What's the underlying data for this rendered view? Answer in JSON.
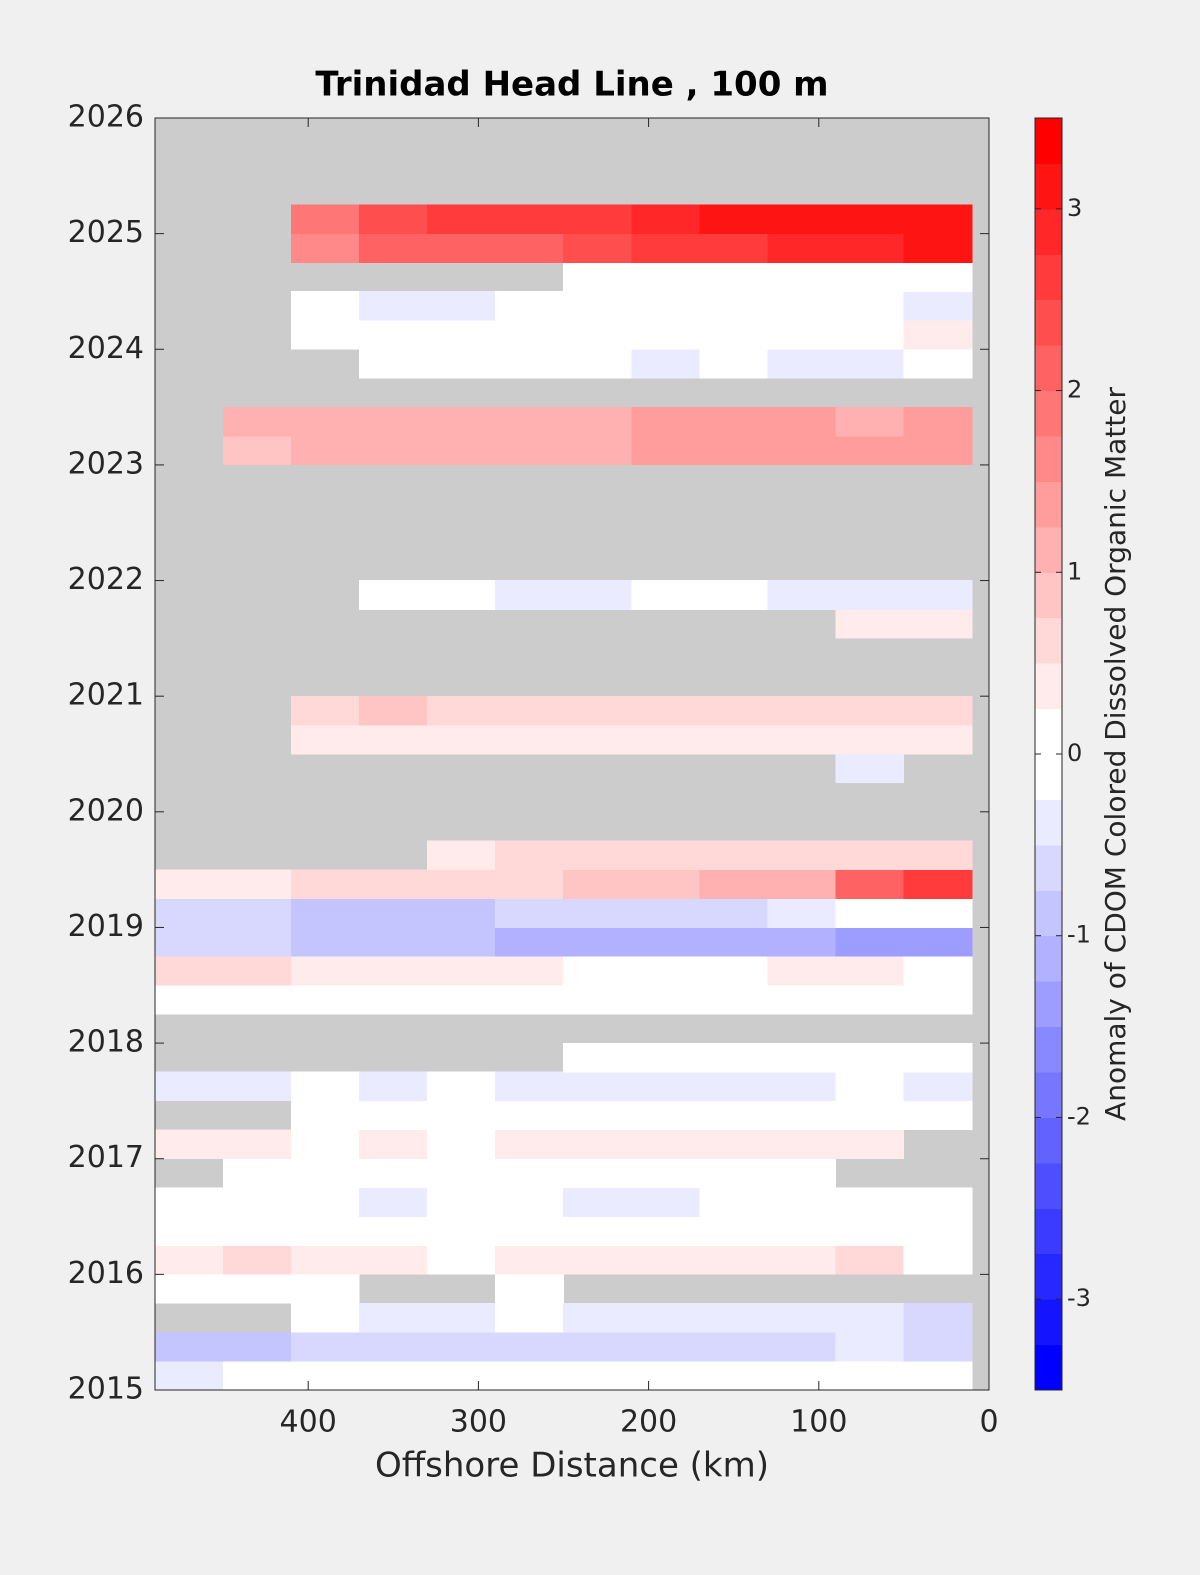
{
  "chart_data": {
    "type": "contour",
    "title": "Trinidad Head Line , 100 m",
    "xlabel": "Offshore Distance (km)",
    "xlim": [
      490,
      0
    ],
    "xticks": [
      0,
      100,
      200,
      300,
      400
    ],
    "ylim": [
      2015,
      2026
    ],
    "yticks": [
      2015,
      2016,
      2017,
      2018,
      2019,
      2020,
      2021,
      2022,
      2023,
      2024,
      2025,
      2026
    ],
    "nan_color": "#cccccc",
    "color_low": "#0000ff",
    "color_zero": "#ffffff",
    "color_high": "#ff0000",
    "colorbar": {
      "label": "Anomaly of CDOM Colored Dissolved Organic Matter",
      "lim": [
        -3.5,
        3.5
      ],
      "ticks": [
        -3,
        -2,
        -1,
        0,
        1,
        2,
        3
      ],
      "step": 0.25
    },
    "x": [
      470,
      430,
      390,
      350,
      310,
      270,
      230,
      190,
      150,
      110,
      70,
      30
    ],
    "y": [
      2015.125,
      2015.375,
      2015.625,
      2015.875,
      2016.125,
      2016.375,
      2016.625,
      2016.875,
      2017.125,
      2017.375,
      2017.625,
      2017.875,
      2018.125,
      2018.375,
      2018.625,
      2018.875,
      2019.125,
      2019.375,
      2019.625,
      2019.875,
      2020.125,
      2020.375,
      2020.625,
      2020.875,
      2021.125,
      2021.375,
      2021.625,
      2021.875,
      2022.125,
      2022.375,
      2022.625,
      2022.875,
      2023.125,
      2023.375,
      2023.625,
      2023.875,
      2024.125,
      2024.375,
      2024.625,
      2024.875,
      2025.125
    ],
    "z": [
      [
        -0.3,
        -0.2,
        -0.1,
        0,
        0,
        0,
        0,
        0,
        0,
        0,
        0,
        0
      ],
      [
        -0.8,
        -0.8,
        -0.7,
        -0.7,
        -0.6,
        -0.6,
        -0.6,
        -0.5,
        -0.5,
        -0.5,
        -0.4,
        -0.5
      ],
      [
        null,
        null,
        -0.2,
        -0.3,
        -0.3,
        -0.2,
        -0.3,
        -0.3,
        -0.4,
        -0.4,
        -0.4,
        -0.5
      ],
      [
        0.1,
        0.1,
        0.1,
        null,
        null,
        0,
        null,
        null,
        null,
        null,
        null,
        null
      ],
      [
        0.4,
        0.5,
        0.4,
        0.3,
        0.2,
        0.3,
        0.3,
        0.3,
        0.3,
        0.4,
        0.5,
        0
      ],
      [
        0,
        0,
        -0.1,
        -0.2,
        -0.1,
        0,
        -0.1,
        0,
        0,
        0,
        0,
        -0.2
      ],
      [
        0,
        0,
        -0.2,
        -0.3,
        -0.1,
        0,
        -0.3,
        -0.3,
        0,
        0,
        0,
        0
      ],
      [
        null,
        0.1,
        0.2,
        0.2,
        0.2,
        0.1,
        0.2,
        0.1,
        0,
        0.1,
        null,
        null
      ],
      [
        0.3,
        0.3,
        0.2,
        0.3,
        0.2,
        0.3,
        0.4,
        0.3,
        0.3,
        0.4,
        0.3,
        null
      ],
      [
        null,
        null,
        0,
        0,
        0,
        0,
        0,
        0,
        0,
        0,
        0,
        0
      ],
      [
        -0.3,
        -0.3,
        -0.2,
        -0.3,
        -0.2,
        -0.3,
        -0.3,
        -0.3,
        -0.3,
        -0.3,
        -0.2,
        -0.3
      ],
      [
        null,
        null,
        null,
        null,
        null,
        null,
        -0.1,
        -0.1,
        -0.2,
        -0.2,
        -0.2,
        -0.1
      ],
      [
        null,
        null,
        null,
        null,
        null,
        null,
        null,
        null,
        null,
        null,
        null,
        null
      ],
      [
        0,
        0,
        0,
        0.1,
        0.1,
        0,
        0,
        0,
        0.1,
        0.1,
        0.2,
        0.2
      ],
      [
        0.6,
        0.5,
        0.4,
        0.3,
        0.3,
        0.3,
        0.2,
        0.2,
        0.2,
        0.3,
        0.3,
        0.2
      ],
      [
        -0.6,
        -0.7,
        -0.8,
        -0.9,
        -0.9,
        -1.0,
        -1.1,
        -1.0,
        -1.0,
        -1.2,
        -1.4,
        -1.4
      ],
      [
        -0.6,
        -0.6,
        -0.8,
        -0.8,
        -0.9,
        -0.7,
        -0.6,
        -0.5,
        -0.5,
        -0.3,
        0,
        -0.2
      ],
      [
        0.4,
        0.4,
        0.5,
        0.5,
        0.6,
        0.7,
        0.8,
        0.9,
        1.0,
        1.2,
        2.2,
        2.6
      ],
      [
        null,
        null,
        null,
        null,
        0.4,
        0.5,
        0.5,
        0.5,
        0.6,
        0.6,
        0.5,
        0.5
      ],
      [
        null,
        null,
        null,
        null,
        null,
        null,
        null,
        null,
        null,
        null,
        null,
        null
      ],
      [
        null,
        null,
        null,
        null,
        null,
        null,
        null,
        null,
        null,
        null,
        null,
        null
      ],
      [
        null,
        null,
        null,
        null,
        null,
        null,
        null,
        null,
        null,
        null,
        -0.4,
        null
      ],
      [
        null,
        null,
        0.3,
        0.3,
        0.4,
        0.4,
        0.3,
        0.4,
        0.3,
        0.3,
        0.3,
        0.4
      ],
      [
        null,
        null,
        0.7,
        0.8,
        0.7,
        0.6,
        0.6,
        0.6,
        0.6,
        0.7,
        0.7,
        0.6
      ],
      [
        null,
        null,
        null,
        null,
        null,
        null,
        null,
        null,
        null,
        null,
        null,
        null
      ],
      [
        null,
        null,
        null,
        null,
        null,
        null,
        null,
        null,
        null,
        null,
        null,
        null
      ],
      [
        null,
        null,
        null,
        null,
        null,
        null,
        null,
        null,
        null,
        null,
        0.3,
        0.3
      ],
      [
        null,
        null,
        null,
        -0.2,
        -0.2,
        -0.3,
        -0.3,
        -0.2,
        -0.2,
        -0.3,
        -0.4,
        -0.3
      ],
      [
        null,
        null,
        null,
        null,
        null,
        null,
        null,
        null,
        null,
        null,
        null,
        null
      ],
      [
        null,
        null,
        null,
        null,
        null,
        null,
        null,
        null,
        null,
        null,
        null,
        null
      ],
      [
        null,
        null,
        null,
        null,
        null,
        null,
        null,
        null,
        null,
        null,
        null,
        null
      ],
      [
        null,
        null,
        null,
        null,
        null,
        null,
        null,
        null,
        null,
        null,
        null,
        null
      ],
      [
        null,
        0.8,
        1.0,
        1.0,
        1.0,
        1.1,
        1.2,
        1.3,
        1.3,
        1.3,
        1.4,
        1.4
      ],
      [
        null,
        1.0,
        1.1,
        1.1,
        1.0,
        1.1,
        1.2,
        1.4,
        1.4,
        1.3,
        1.2,
        1.3
      ],
      [
        null,
        null,
        null,
        null,
        null,
        null,
        null,
        null,
        null,
        null,
        null,
        null
      ],
      [
        null,
        null,
        null,
        0,
        0,
        0,
        -0.1,
        -0.3,
        -0.1,
        -0.3,
        -0.3,
        -0.2
      ],
      [
        null,
        null,
        0,
        0,
        -0.2,
        -0.1,
        0,
        0,
        0,
        0.2,
        0.2,
        0.3
      ],
      [
        null,
        null,
        -0.2,
        -0.3,
        -0.3,
        -0.2,
        -0.1,
        -0.1,
        0,
        0,
        -0.1,
        -0.3
      ],
      [
        null,
        null,
        null,
        null,
        null,
        null,
        0,
        0,
        0,
        -0.1,
        -0.2,
        -0.1
      ],
      [
        null,
        null,
        1.6,
        2.0,
        2.2,
        2.2,
        2.4,
        2.6,
        2.7,
        2.8,
        2.9,
        3.1
      ],
      [
        null,
        null,
        1.8,
        2.3,
        2.5,
        2.5,
        2.6,
        2.8,
        3.0,
        3.1,
        3.2,
        3.2
      ]
    ]
  }
}
